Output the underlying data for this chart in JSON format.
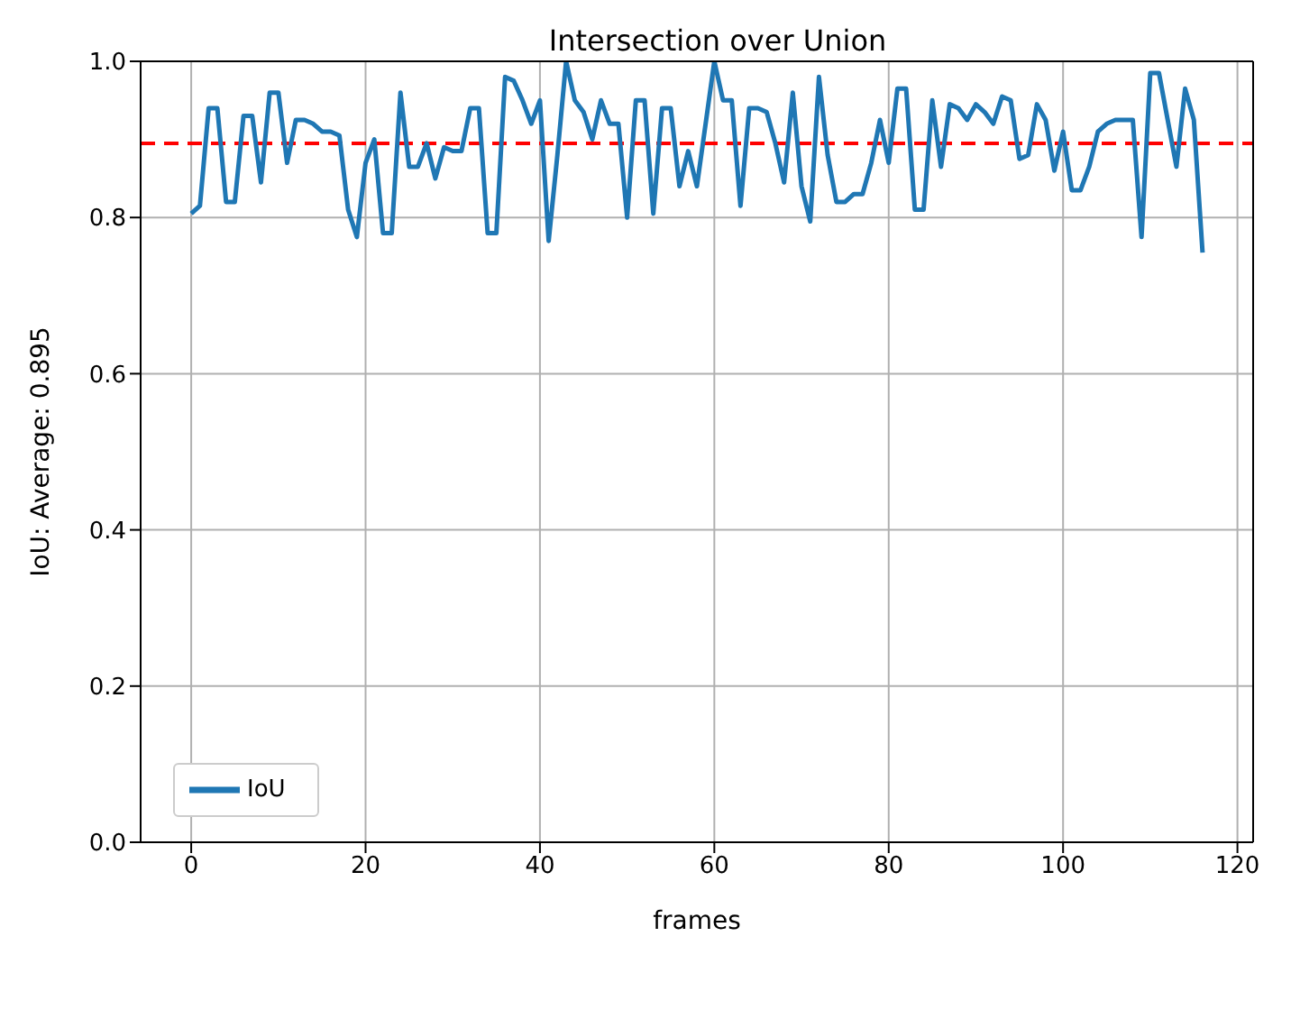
{
  "chart_data": {
    "type": "line",
    "title": "Intersection over Union",
    "xlabel": "frames",
    "ylabel": "IoU: Average: 0.895",
    "x": [
      0,
      1,
      2,
      3,
      4,
      5,
      6,
      7,
      8,
      9,
      10,
      11,
      12,
      13,
      14,
      15,
      16,
      17,
      18,
      19,
      20,
      21,
      22,
      23,
      24,
      25,
      26,
      27,
      28,
      29,
      30,
      31,
      32,
      33,
      34,
      35,
      36,
      37,
      38,
      39,
      40,
      41,
      42,
      43,
      44,
      45,
      46,
      47,
      48,
      49,
      50,
      51,
      52,
      53,
      54,
      55,
      56,
      57,
      58,
      59,
      60,
      61,
      62,
      63,
      64,
      65,
      66,
      67,
      68,
      69,
      70,
      71,
      72,
      73,
      74,
      75,
      76,
      77,
      78,
      79,
      80,
      81,
      82,
      83,
      84,
      85,
      86,
      87,
      88,
      89,
      90,
      91,
      92,
      93,
      94,
      95,
      96,
      97,
      98,
      99,
      100,
      101,
      102,
      103,
      104,
      105,
      106,
      107,
      108,
      109,
      110,
      111,
      112,
      113,
      114,
      115,
      116
    ],
    "series": [
      {
        "name": "IoU",
        "color": "#1f77b4",
        "values": [
          0.805,
          0.815,
          0.94,
          0.94,
          0.82,
          0.82,
          0.93,
          0.93,
          0.845,
          0.96,
          0.96,
          0.87,
          0.925,
          0.925,
          0.92,
          0.91,
          0.91,
          0.905,
          0.81,
          0.775,
          0.87,
          0.9,
          0.78,
          0.78,
          0.96,
          0.865,
          0.865,
          0.895,
          0.85,
          0.89,
          0.885,
          0.885,
          0.94,
          0.94,
          0.78,
          0.78,
          0.98,
          0.975,
          0.95,
          0.92,
          0.95,
          0.77,
          0.88,
          1.0,
          0.95,
          0.935,
          0.9,
          0.95,
          0.92,
          0.92,
          0.8,
          0.95,
          0.95,
          0.805,
          0.94,
          0.94,
          0.84,
          0.885,
          0.84,
          0.92,
          1.0,
          0.95,
          0.95,
          0.815,
          0.94,
          0.94,
          0.935,
          0.895,
          0.845,
          0.96,
          0.84,
          0.795,
          0.98,
          0.88,
          0.82,
          0.82,
          0.83,
          0.83,
          0.87,
          0.925,
          0.87,
          0.965,
          0.965,
          0.81,
          0.81,
          0.95,
          0.865,
          0.945,
          0.94,
          0.925,
          0.945,
          0.935,
          0.92,
          0.955,
          0.95,
          0.875,
          0.88,
          0.945,
          0.925,
          0.86,
          0.91,
          0.835,
          0.835,
          0.865,
          0.91,
          0.92,
          0.925,
          0.925,
          0.925,
          0.775,
          0.985,
          0.985,
          0.925,
          0.865,
          0.965,
          0.925,
          0.755
        ]
      }
    ],
    "xlim": [
      -5.8,
      121.8
    ],
    "xticks": [
      0,
      20,
      40,
      60,
      80,
      100,
      120
    ],
    "ylim": [
      0,
      1
    ],
    "yticks": [
      {
        "value": 0,
        "label": "0.0"
      },
      {
        "value": 0.2,
        "label": "0.2"
      },
      {
        "value": 0.4,
        "label": "0.4"
      },
      {
        "value": 0.6,
        "label": "0.6"
      },
      {
        "value": 0.8,
        "label": "0.8"
      },
      {
        "value": 1,
        "label": "1.0"
      }
    ],
    "ref_lines": [
      {
        "axis": "y",
        "value": 0.895,
        "color": "#ff0000",
        "line_style": "dashed"
      }
    ],
    "grid": true,
    "legend": "bottom left",
    "marker": "none",
    "line_style": "solid"
  }
}
